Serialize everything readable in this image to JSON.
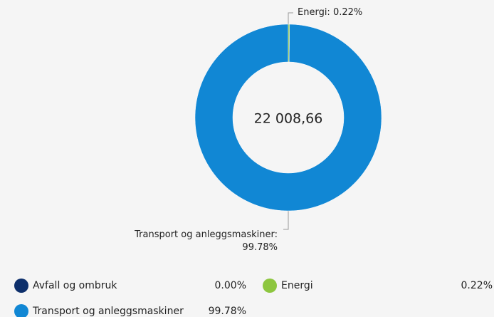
{
  "chart_data": {
    "type": "donut",
    "center_label": "22 008,66",
    "categories": [
      "Avfall og ombruk",
      "Energi",
      "Transport og anleggsmaskiner"
    ],
    "values": [
      0.0,
      0.22,
      99.78
    ],
    "value_labels": [
      "0.00%",
      "0.22%",
      "99.78%"
    ],
    "colors": [
      "#0d2f6b",
      "#8dc63f",
      "#1187d4"
    ],
    "annotations": [
      {
        "category": 1,
        "text": "Energi: 0.22%"
      },
      {
        "category": 2,
        "text": "Transport og anleggsmaskiner: 99.78%"
      }
    ]
  }
}
